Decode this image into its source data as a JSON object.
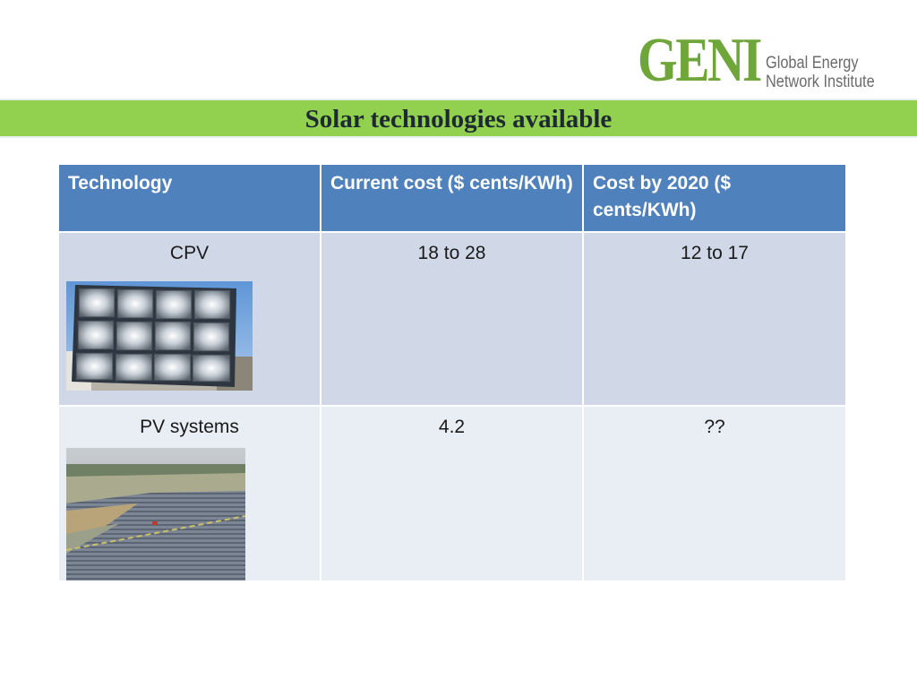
{
  "logo": {
    "mark": "GENI",
    "subtitle_line1": "Global Energy",
    "subtitle_line2": "Network Institute"
  },
  "title": "Solar technologies available",
  "table": {
    "headers": [
      "Technology",
      "Current cost ($ cents/KWh)",
      "Cost by 2020 ($ cents/KWh)"
    ],
    "rows": [
      {
        "technology": "CPV",
        "current_cost": "18 to 28",
        "cost_2020": "12 to 17",
        "image": "cpv-panel-photo"
      },
      {
        "technology": "PV systems",
        "current_cost": "4.2",
        "cost_2020": "??",
        "image": "pv-field-photo"
      }
    ]
  },
  "colors": {
    "band": "#92d050",
    "header": "#4f81bd",
    "row_odd": "#d0d8e8",
    "row_even": "#e9edf4",
    "logo_green": "#6ea63a"
  }
}
